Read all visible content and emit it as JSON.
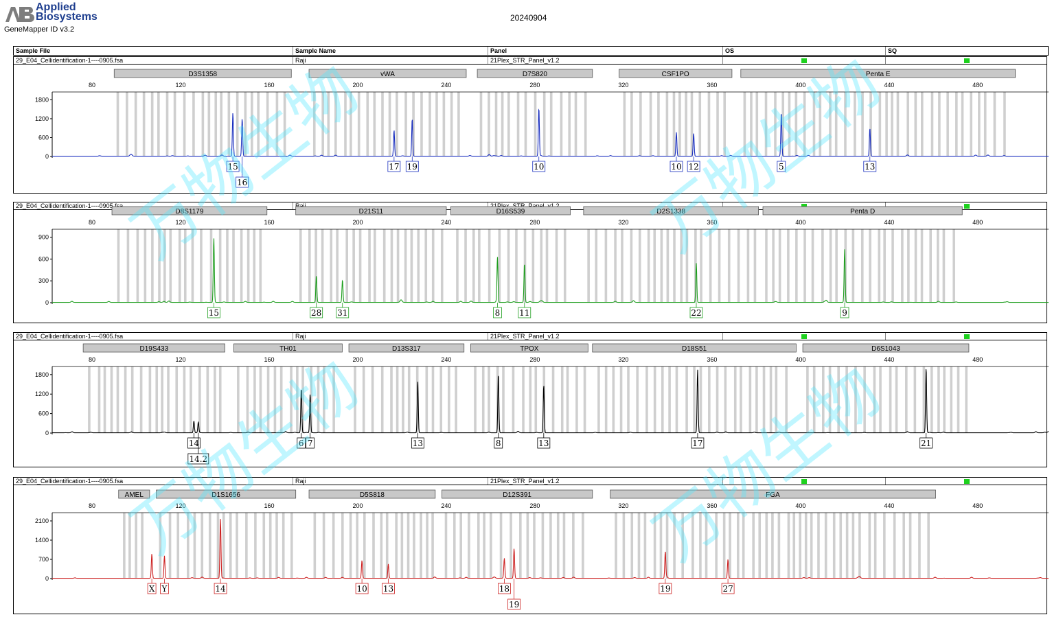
{
  "header": {
    "brand_line1": "Applied",
    "brand_line2": "Biosystems",
    "software": "GeneMapper ID v3.2",
    "date": "20240904",
    "columns": {
      "sample_file": "Sample File",
      "sample_name": "Sample Name",
      "panel": "Panel",
      "os": "OS",
      "sq": "SQ"
    }
  },
  "colors": {
    "blue": "#1a2fbf",
    "green": "#1e9e1e",
    "black": "#000000",
    "red": "#cc1f1f",
    "bin": "#cfcfcf",
    "locus_bg": "#c8c8c8",
    "qc_ok": "#1ed11e",
    "watermark": "#4ee8ff"
  },
  "watermark_text": "万物生物",
  "chart_data": [
    {
      "type": "line",
      "sample_file": "29_E04_Cellidentification-1----0905.fsa",
      "sample_name": "Raji",
      "panel": "21Plex_STR_Panel_v1.2",
      "color": "#1a2fbf",
      "xlim": [
        62,
        512
      ],
      "xticks": [
        80,
        120,
        160,
        200,
        240,
        280,
        320,
        360,
        400,
        440,
        480
      ],
      "ylim": [
        0,
        2050
      ],
      "yticks": [
        0,
        600,
        1200,
        1800
      ],
      "loci": [
        {
          "name": "D3S1358",
          "start": 90,
          "end": 170
        },
        {
          "name": "vWA",
          "start": 178,
          "end": 249
        },
        {
          "name": "D7S820",
          "start": 254,
          "end": 306
        },
        {
          "name": "CSF1PO",
          "start": 318,
          "end": 369
        },
        {
          "name": "Penta E",
          "start": 373,
          "end": 497
        }
      ],
      "peaks": [
        {
          "x": 143.6,
          "height": 1380,
          "allele": "15"
        },
        {
          "x": 147.8,
          "height": 1200,
          "allele": "16"
        },
        {
          "x": 216.4,
          "height": 830,
          "allele": "17"
        },
        {
          "x": 224.6,
          "height": 1200,
          "allele": "19"
        },
        {
          "x": 281.8,
          "height": 1540,
          "allele": "10"
        },
        {
          "x": 343.9,
          "height": 760,
          "allele": "10"
        },
        {
          "x": 351.7,
          "height": 730,
          "allele": "12"
        },
        {
          "x": 391.3,
          "height": 1380,
          "allele": "5"
        },
        {
          "x": 431.3,
          "height": 900,
          "allele": "13"
        }
      ]
    },
    {
      "type": "line",
      "sample_file": "29_E04_Cellidentification-1----0905.fsa",
      "sample_name": "Raji",
      "panel": "21Plex_STR_Panel_v1.2",
      "color": "#1e9e1e",
      "xlim": [
        62,
        512
      ],
      "xticks": [
        80,
        120,
        160,
        200,
        240,
        280,
        320,
        360,
        400,
        440,
        480
      ],
      "ylim": [
        0,
        1010
      ],
      "yticks": [
        0,
        300,
        600,
        900
      ],
      "loci": [
        {
          "name": "D8S1179",
          "start": 89,
          "end": 159
        },
        {
          "name": "D21S11",
          "start": 172,
          "end": 240
        },
        {
          "name": "D16S539",
          "start": 242,
          "end": 296
        },
        {
          "name": "D2S1338",
          "start": 302,
          "end": 381
        },
        {
          "name": "Penta D",
          "start": 383,
          "end": 473
        }
      ],
      "peaks": [
        {
          "x": 135.0,
          "height": 890,
          "allele": "15"
        },
        {
          "x": 181.3,
          "height": 370,
          "allele": "28"
        },
        {
          "x": 193.1,
          "height": 310,
          "allele": "31"
        },
        {
          "x": 263.1,
          "height": 620,
          "allele": "8"
        },
        {
          "x": 275.3,
          "height": 540,
          "allele": "11"
        },
        {
          "x": 352.9,
          "height": 540,
          "allele": "22"
        },
        {
          "x": 419.9,
          "height": 730,
          "allele": "9"
        }
      ]
    },
    {
      "type": "line",
      "sample_file": "29_E04_Cellidentification-1----0905.fsa",
      "sample_name": "Raji",
      "panel": "21Plex_STR_Panel_v1.2",
      "color": "#000000",
      "xlim": [
        62,
        512
      ],
      "xticks": [
        80,
        120,
        160,
        200,
        240,
        280,
        320,
        360,
        400,
        440,
        480
      ],
      "ylim": [
        0,
        2050
      ],
      "yticks": [
        0,
        600,
        1200,
        1800
      ],
      "loci": [
        {
          "name": "D19S433",
          "start": 76,
          "end": 140
        },
        {
          "name": "TH01",
          "start": 144,
          "end": 193
        },
        {
          "name": "D13S317",
          "start": 196,
          "end": 248
        },
        {
          "name": "TPOX",
          "start": 251,
          "end": 304
        },
        {
          "name": "D18S51",
          "start": 306,
          "end": 398
        },
        {
          "name": "D6S1043",
          "start": 401,
          "end": 476
        }
      ],
      "peaks": [
        {
          "x": 126.0,
          "height": 370,
          "allele": "14"
        },
        {
          "x": 128.0,
          "height": 330,
          "allele": "14.2"
        },
        {
          "x": 174.5,
          "height": 1380,
          "allele": "6"
        },
        {
          "x": 178.5,
          "height": 1200,
          "allele": "7"
        },
        {
          "x": 227.1,
          "height": 1600,
          "allele": "13"
        },
        {
          "x": 263.5,
          "height": 1830,
          "allele": "8"
        },
        {
          "x": 284.0,
          "height": 1480,
          "allele": "13"
        },
        {
          "x": 353.5,
          "height": 1950,
          "allele": "17"
        },
        {
          "x": 456.7,
          "height": 2020,
          "allele": "21"
        }
      ]
    },
    {
      "type": "line",
      "sample_file": "29_E04_Cellidentification-1----0905.fsa",
      "sample_name": "Raji",
      "panel": "21Plex_STR_Panel_v1.2",
      "color": "#cc1f1f",
      "xlim": [
        62,
        512
      ],
      "xticks": [
        80,
        120,
        160,
        200,
        240,
        280,
        320,
        360,
        400,
        440,
        480
      ],
      "ylim": [
        0,
        2400
      ],
      "yticks": [
        0,
        700,
        1400,
        2100
      ],
      "loci": [
        {
          "name": "AMEL",
          "start": 92,
          "end": 106
        },
        {
          "name": "D1S1656",
          "start": 109,
          "end": 172
        },
        {
          "name": "D5S818",
          "start": 178,
          "end": 235
        },
        {
          "name": "D12S391",
          "start": 238,
          "end": 306
        },
        {
          "name": "FGA",
          "start": 314,
          "end": 461
        }
      ],
      "peaks": [
        {
          "x": 107.0,
          "height": 880,
          "allele": "X"
        },
        {
          "x": 112.7,
          "height": 820,
          "allele": "Y"
        },
        {
          "x": 138.0,
          "height": 2170,
          "allele": "14"
        },
        {
          "x": 201.9,
          "height": 650,
          "allele": "10"
        },
        {
          "x": 213.8,
          "height": 520,
          "allele": "13"
        },
        {
          "x": 266.2,
          "height": 690,
          "allele": "18"
        },
        {
          "x": 270.6,
          "height": 1090,
          "allele": "19"
        },
        {
          "x": 338.9,
          "height": 960,
          "allele": "19"
        },
        {
          "x": 367.2,
          "height": 690,
          "allele": "27"
        }
      ]
    }
  ]
}
